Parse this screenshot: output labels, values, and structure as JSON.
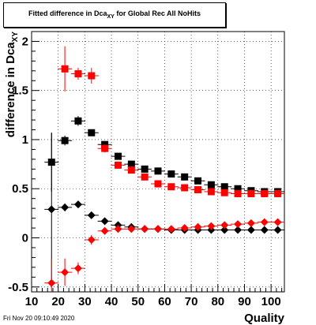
{
  "header": {
    "title_main": "Fitted difference in Dca",
    "title_sub": "XY",
    "title_rest": " for Global Rec All NoHits"
  },
  "footer": {
    "timestamp": "Fri Nov 20 09:10:49 2020"
  },
  "chart_data": {
    "type": "scatter",
    "title": "Fitted difference in Dca_XY for Global Rec All NoHits",
    "xlabel": "Quality",
    "ylabel": "difference in Dca",
    "ylabel_sub": "XY",
    "xlim": [
      10,
      105
    ],
    "ylim": [
      -0.55,
      2.1
    ],
    "x_ticks": [
      10,
      20,
      30,
      40,
      50,
      60,
      70,
      80,
      90,
      100
    ],
    "y_ticks": [
      -0.5,
      0,
      0.5,
      1,
      1.5,
      2
    ],
    "y_tick_labels": [
      "-0.5",
      "0",
      "0.5",
      "1",
      "1.5",
      "2"
    ],
    "grid": true,
    "legend": "none",
    "series": [
      {
        "color": "#000000",
        "marker": "square",
        "x": [
          17.5,
          22.5,
          27.5,
          32.5,
          37.5,
          42.5,
          47.5,
          52.5,
          57.5,
          62.5,
          67.5,
          72.5,
          77.5,
          82.5,
          87.5,
          92.5,
          97.5,
          102.5
        ],
        "y": [
          0.77,
          0.99,
          1.19,
          1.07,
          0.95,
          0.83,
          0.75,
          0.7,
          0.68,
          0.65,
          0.62,
          0.58,
          0.54,
          0.52,
          0.5,
          0.48,
          0.47,
          0.47
        ],
        "err": [
          0.3,
          0.05,
          0.05,
          0.03,
          0.03,
          0.02,
          0.02,
          0.02,
          0.02,
          0.02,
          0.02,
          0.02,
          0.02,
          0.02,
          0.02,
          0.02,
          0.02,
          0.02
        ]
      },
      {
        "color": "#ff0000",
        "marker": "square",
        "x": [
          22.5,
          27.5,
          32.5,
          37.5,
          42.5,
          47.5,
          52.5,
          57.5,
          62.5,
          67.5,
          72.5,
          77.5,
          82.5,
          87.5,
          92.5,
          97.5,
          102.5
        ],
        "y": [
          1.72,
          1.67,
          1.65,
          0.91,
          0.74,
          0.69,
          0.62,
          0.55,
          0.52,
          0.51,
          0.49,
          0.47,
          0.46,
          0.45,
          0.45,
          0.45,
          0.45
        ],
        "err": [
          0.23,
          0.06,
          0.08,
          0.04,
          0.03,
          0.02,
          0.02,
          0.02,
          0.02,
          0.02,
          0.02,
          0.02,
          0.02,
          0.02,
          0.02,
          0.02,
          0.02
        ]
      },
      {
        "color": "#000000",
        "marker": "diamond",
        "x": [
          17.5,
          22.5,
          27.5,
          32.5,
          37.5,
          42.5,
          47.5,
          52.5,
          57.5,
          62.5,
          67.5,
          72.5,
          77.5,
          82.5,
          87.5,
          92.5,
          97.5,
          102.5
        ],
        "y": [
          0.29,
          0.31,
          0.34,
          0.23,
          0.17,
          0.13,
          0.11,
          0.09,
          0.09,
          0.08,
          0.08,
          0.08,
          0.08,
          0.08,
          0.08,
          0.08,
          0.08,
          0.08
        ],
        "err": [
          0.78,
          0.04,
          0.03,
          0.02,
          0.02,
          0.01,
          0.01,
          0.01,
          0.01,
          0.01,
          0.01,
          0.01,
          0.01,
          0.01,
          0.01,
          0.01,
          0.01,
          0.01
        ]
      },
      {
        "color": "#ff0000",
        "marker": "diamond",
        "x": [
          17.5,
          22.5,
          27.5,
          32.5,
          37.5,
          42.5,
          47.5,
          52.5,
          57.5,
          62.5,
          67.5,
          72.5,
          77.5,
          82.5,
          87.5,
          92.5,
          97.5,
          102.5
        ],
        "y": [
          -0.46,
          -0.35,
          -0.31,
          -0.02,
          0.07,
          0.09,
          0.09,
          0.09,
          0.09,
          0.09,
          0.1,
          0.11,
          0.12,
          0.13,
          0.14,
          0.15,
          0.16,
          0.16
        ],
        "err": [
          0.25,
          0.14,
          0.06,
          0.05,
          0.02,
          0.01,
          0.01,
          0.01,
          0.01,
          0.01,
          0.01,
          0.01,
          0.01,
          0.01,
          0.01,
          0.01,
          0.01,
          0.01
        ]
      }
    ]
  }
}
